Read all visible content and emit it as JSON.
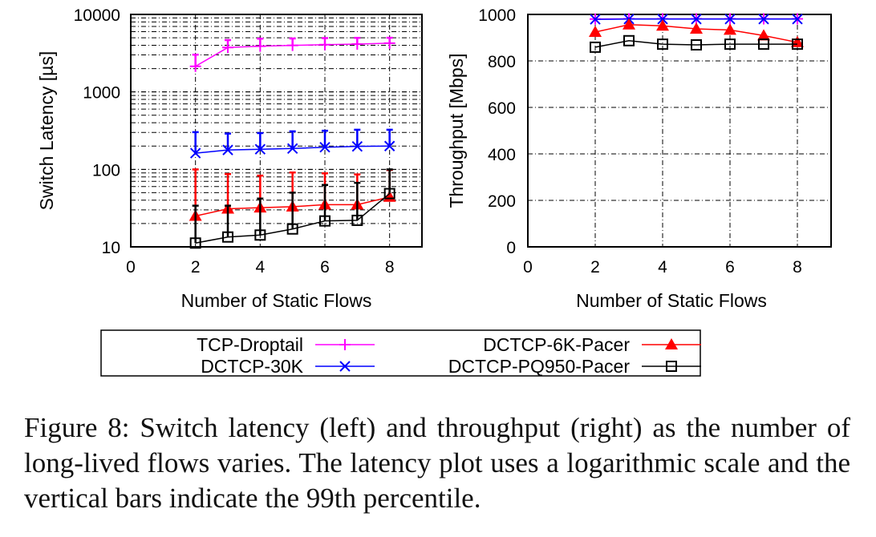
{
  "chart_data": [
    {
      "type": "line",
      "title": "",
      "xlabel": "Number of Static Flows",
      "ylabel": "Switch Latency [µs]",
      "yscale": "log",
      "xlim": [
        0,
        9
      ],
      "ylim": [
        10,
        10000
      ],
      "xticks": [
        "0",
        "2",
        "4",
        "6",
        "8"
      ],
      "yticks": [
        "10",
        "100",
        "1000",
        "10000"
      ],
      "grid": true,
      "x": [
        2,
        3,
        4,
        5,
        6,
        7,
        8
      ],
      "series": [
        {
          "name": "TCP-Droptail",
          "color": "#ff00ff",
          "marker": "plus",
          "values": [
            2140,
            3740,
            3890,
            3980,
            4070,
            4140,
            4250
          ],
          "p99": [
            3020,
            4670,
            4860,
            4900,
            4950,
            4980,
            5000
          ]
        },
        {
          "name": "DCTCP-30K",
          "color": "#0000ff",
          "marker": "x",
          "values": [
            162,
            178,
            182,
            186,
            193,
            198,
            200
          ],
          "p99": [
            302,
            290,
            294,
            310,
            315,
            325,
            325
          ]
        },
        {
          "name": "DCTCP-6K-Pacer",
          "color": "#ff0000",
          "marker": "triangle",
          "values": [
            25,
            31,
            32,
            33,
            35,
            35,
            44
          ],
          "p99": [
            100,
            87,
            83,
            91,
            89,
            86,
            98
          ]
        },
        {
          "name": "DCTCP-PQ950-Pacer",
          "color": "#000000",
          "marker": "square",
          "values": [
            11.2,
            13.4,
            14.2,
            17,
            21.6,
            22,
            48.7
          ],
          "p99": [
            34,
            34,
            42,
            50,
            63,
            67,
            100
          ]
        }
      ]
    },
    {
      "type": "line",
      "title": "",
      "xlabel": "Number of Static Flows",
      "ylabel": "Throughput [Mbps]",
      "xlim": [
        0,
        9
      ],
      "ylim": [
        0,
        1000
      ],
      "xticks": [
        "0",
        "2",
        "4",
        "6",
        "8"
      ],
      "yticks": [
        "0",
        "200",
        "400",
        "600",
        "800",
        "1000"
      ],
      "grid": true,
      "x": [
        2,
        3,
        4,
        5,
        6,
        7,
        8
      ],
      "series": [
        {
          "name": "TCP-Droptail",
          "color": "#ff00ff",
          "marker": "plus",
          "values": [
            980,
            981,
            981,
            981,
            981,
            981,
            981
          ]
        },
        {
          "name": "DCTCP-30K",
          "color": "#0000ff",
          "marker": "x",
          "values": [
            979,
            980,
            980,
            980,
            980,
            980,
            980
          ]
        },
        {
          "name": "DCTCP-6K-Pacer",
          "color": "#ff0000",
          "marker": "triangle",
          "values": [
            924,
            956,
            951,
            938,
            933,
            909,
            880
          ]
        },
        {
          "name": "DCTCP-PQ950-Pacer",
          "color": "#000000",
          "marker": "square",
          "values": [
            859,
            887,
            872,
            869,
            872,
            872,
            872
          ]
        }
      ]
    }
  ],
  "legend": [
    "TCP-Droptail",
    "DCTCP-30K",
    "DCTCP-6K-Pacer",
    "DCTCP-PQ950-Pacer"
  ],
  "caption": "Figure 8: Switch latency (left) and throughput (right) as the number of long-lived flows varies. The latency plot uses a logarithmic scale and the vertical bars indicate the 99th percentile."
}
